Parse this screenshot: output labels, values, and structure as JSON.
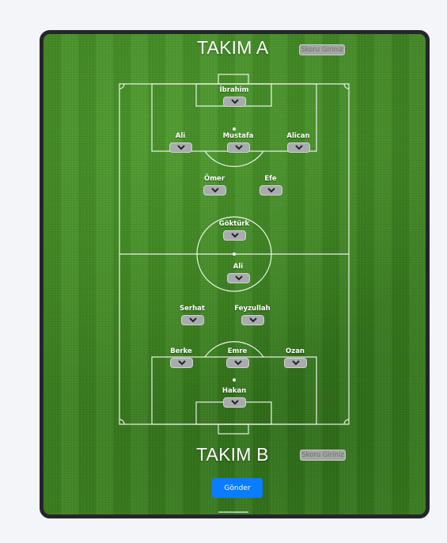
{
  "team_a": {
    "title": "TAKIM A",
    "score_placeholder": "Skoru Giriniz"
  },
  "team_b": {
    "title": "TAKIM B",
    "score_placeholder": "Skoru Giriniz"
  },
  "submit_label": "Gönder",
  "players_a": [
    {
      "name": "İbrahim"
    },
    {
      "name": "Ali"
    },
    {
      "name": "Mustafa"
    },
    {
      "name": "Alican"
    },
    {
      "name": "Ömer"
    },
    {
      "name": "Efe"
    },
    {
      "name": "Göktürk"
    }
  ],
  "players_b": [
    {
      "name": "Ali"
    },
    {
      "name": "Serhat"
    },
    {
      "name": "Feyzullah"
    },
    {
      "name": "Berke"
    },
    {
      "name": "Emre"
    },
    {
      "name": "Ozan"
    },
    {
      "name": "Hakan"
    }
  ],
  "colors": {
    "card_border": "#25262b",
    "grass": "#3f8422",
    "button_blue": "#0a7cff",
    "player_button": "#a9acae"
  },
  "icons": {
    "player_button": "chevron-down-icon"
  }
}
